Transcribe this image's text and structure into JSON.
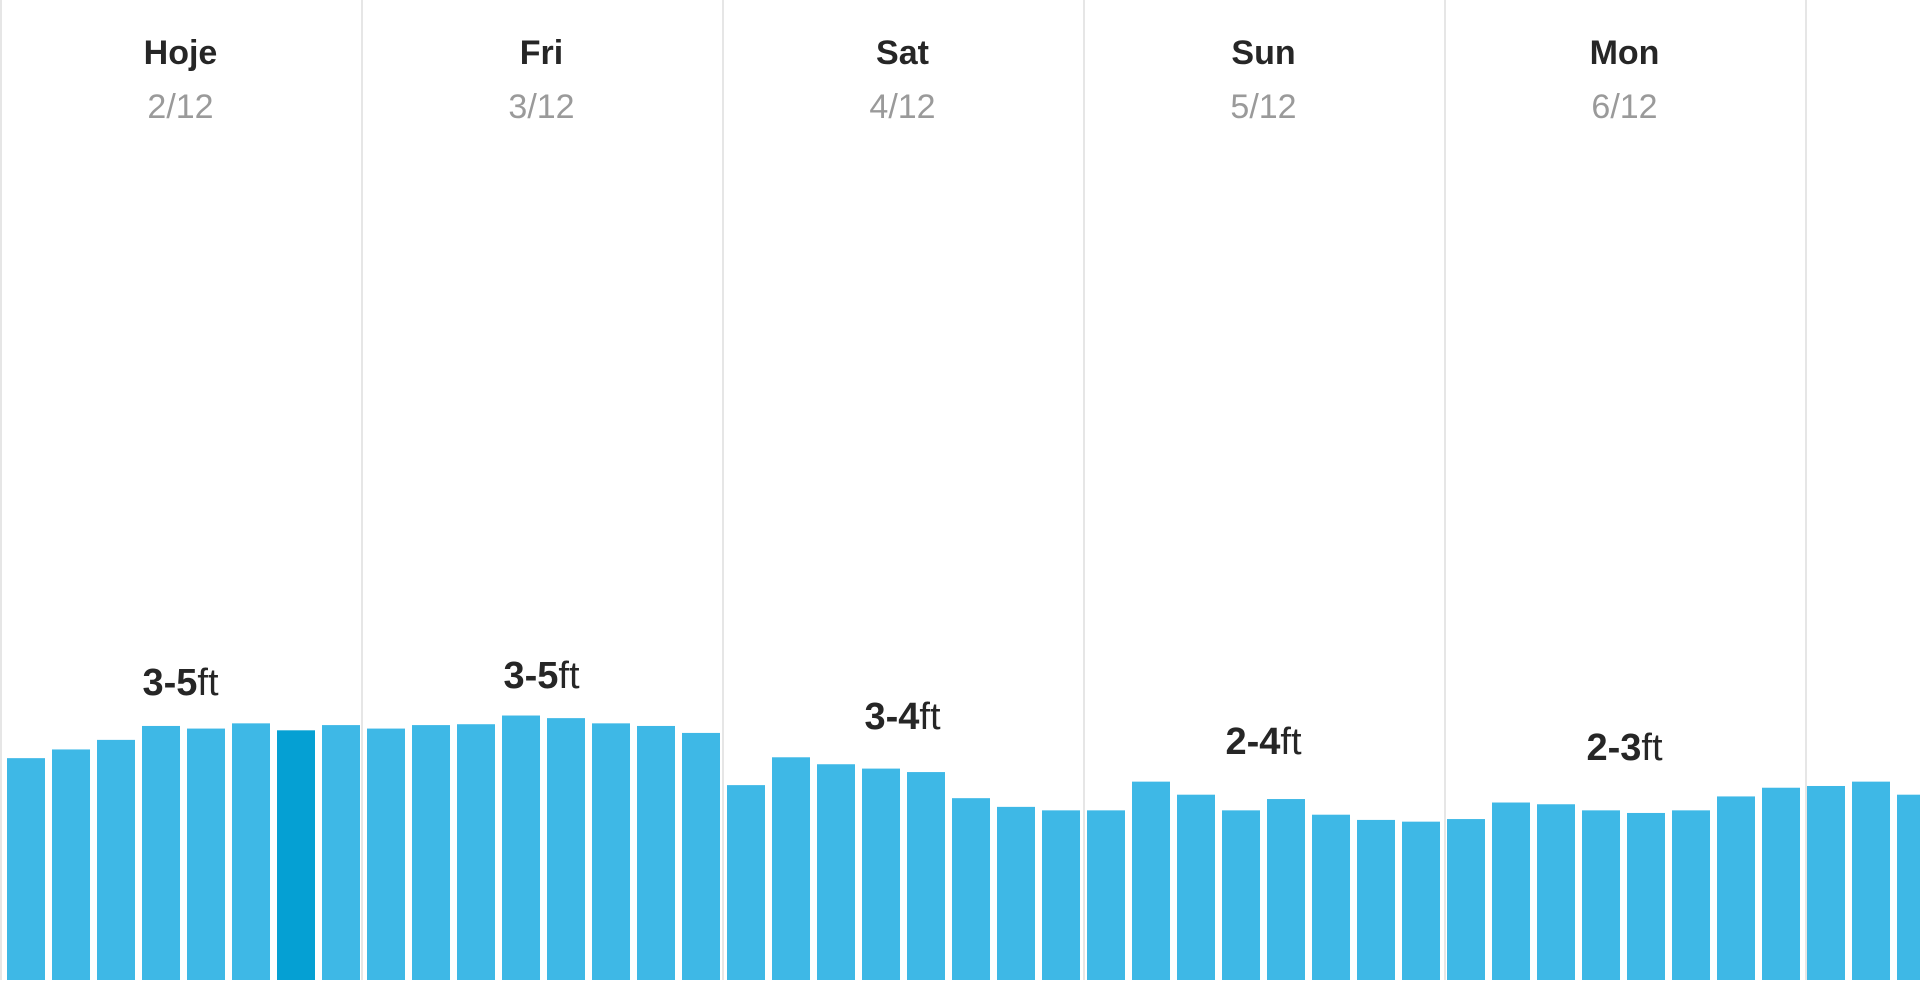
{
  "chart_data": {
    "type": "bar",
    "days": [
      {
        "name": "Hoje",
        "date": "2/12",
        "range": "3-5",
        "unit": "ft"
      },
      {
        "name": "Fri",
        "date": "3/12",
        "range": "3-5",
        "unit": "ft"
      },
      {
        "name": "Sat",
        "date": "4/12",
        "range": "3-4",
        "unit": "ft"
      },
      {
        "name": "Sun",
        "date": "5/12",
        "range": "2-4",
        "unit": "ft"
      },
      {
        "name": "Mon",
        "date": "6/12",
        "range": "2-3",
        "unit": "ft"
      }
    ],
    "values": [
      2.55,
      2.65,
      2.76,
      2.92,
      2.89,
      2.95,
      2.87,
      2.93,
      2.89,
      2.93,
      2.94,
      3.04,
      3.01,
      2.95,
      2.92,
      2.84,
      2.24,
      2.56,
      2.48,
      2.43,
      2.39,
      2.09,
      1.99,
      1.95,
      1.95,
      2.28,
      2.13,
      1.95,
      2.08,
      1.9,
      1.84,
      1.82,
      1.85,
      2.04,
      2.02,
      1.95,
      1.92,
      1.95,
      2.11,
      2.21,
      2.23,
      2.28,
      2.13
    ],
    "highlight_index": 6,
    "ylim": [
      0,
      10
    ],
    "colors": {
      "bar": "#3eb8e6",
      "bar_highlight": "#05a0d3",
      "divider": "#e6e6e6",
      "day_name": "#262626",
      "date": "#9a9a9a",
      "range_label": "#262626"
    }
  }
}
